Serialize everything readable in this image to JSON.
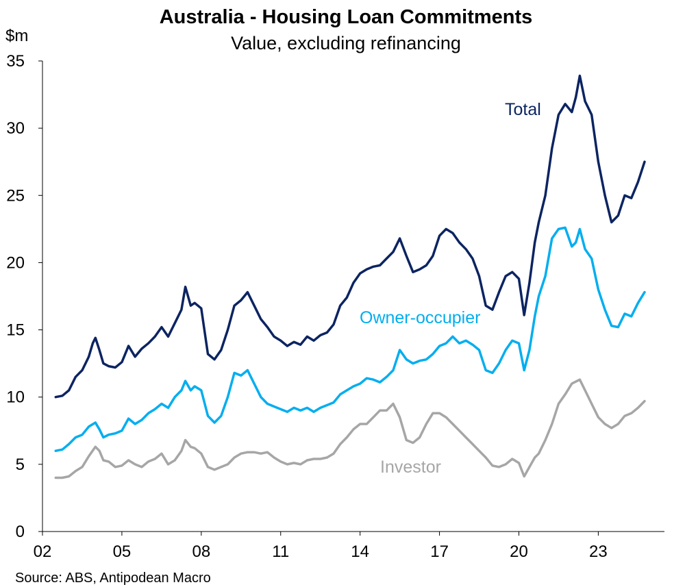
{
  "chart_data": {
    "type": "line",
    "title": "Australia - Housing Loan Commitments",
    "subtitle": "Value, excluding refinancing",
    "ylabel": "$m",
    "ylim": [
      0,
      35
    ],
    "yticks": [
      "0",
      "5",
      "10",
      "15",
      "20",
      "25",
      "30",
      "35"
    ],
    "xlim": [
      2002,
      2025.5
    ],
    "xtick_values": [
      2002,
      2005,
      2008,
      2011,
      2014,
      2017,
      2020,
      2023
    ],
    "xticks": [
      "02",
      "05",
      "08",
      "11",
      "14",
      "17",
      "20",
      "23"
    ],
    "grid": false,
    "source": "Source: ABS, Antipodean Macro",
    "series": [
      {
        "name": "Total",
        "color": "#0c2461",
        "points": [
          [
            2002.5,
            10.0
          ],
          [
            2002.75,
            10.1
          ],
          [
            2003.0,
            10.5
          ],
          [
            2003.25,
            11.5
          ],
          [
            2003.5,
            12.0
          ],
          [
            2003.75,
            13.0
          ],
          [
            2003.9,
            14.0
          ],
          [
            2004.0,
            14.4
          ],
          [
            2004.15,
            13.5
          ],
          [
            2004.3,
            12.5
          ],
          [
            2004.5,
            12.3
          ],
          [
            2004.75,
            12.2
          ],
          [
            2005.0,
            12.6
          ],
          [
            2005.25,
            13.8
          ],
          [
            2005.5,
            13.0
          ],
          [
            2005.75,
            13.6
          ],
          [
            2006.0,
            14.0
          ],
          [
            2006.25,
            14.5
          ],
          [
            2006.5,
            15.2
          ],
          [
            2006.75,
            14.5
          ],
          [
            2007.0,
            15.5
          ],
          [
            2007.25,
            16.5
          ],
          [
            2007.4,
            18.2
          ],
          [
            2007.6,
            16.8
          ],
          [
            2007.75,
            17.0
          ],
          [
            2008.0,
            16.6
          ],
          [
            2008.25,
            13.2
          ],
          [
            2008.5,
            12.8
          ],
          [
            2008.75,
            13.5
          ],
          [
            2009.0,
            15.0
          ],
          [
            2009.25,
            16.8
          ],
          [
            2009.5,
            17.2
          ],
          [
            2009.75,
            17.8
          ],
          [
            2010.0,
            16.8
          ],
          [
            2010.25,
            15.8
          ],
          [
            2010.5,
            15.2
          ],
          [
            2010.75,
            14.5
          ],
          [
            2011.0,
            14.2
          ],
          [
            2011.25,
            13.8
          ],
          [
            2011.5,
            14.1
          ],
          [
            2011.75,
            13.9
          ],
          [
            2012.0,
            14.5
          ],
          [
            2012.25,
            14.2
          ],
          [
            2012.5,
            14.6
          ],
          [
            2012.75,
            14.8
          ],
          [
            2013.0,
            15.4
          ],
          [
            2013.25,
            16.8
          ],
          [
            2013.5,
            17.4
          ],
          [
            2013.75,
            18.5
          ],
          [
            2014.0,
            19.2
          ],
          [
            2014.25,
            19.5
          ],
          [
            2014.5,
            19.7
          ],
          [
            2014.75,
            19.8
          ],
          [
            2015.0,
            20.3
          ],
          [
            2015.25,
            20.8
          ],
          [
            2015.5,
            21.8
          ],
          [
            2015.75,
            20.5
          ],
          [
            2016.0,
            19.3
          ],
          [
            2016.25,
            19.5
          ],
          [
            2016.5,
            19.8
          ],
          [
            2016.75,
            20.5
          ],
          [
            2017.0,
            22.0
          ],
          [
            2017.25,
            22.5
          ],
          [
            2017.5,
            22.2
          ],
          [
            2017.75,
            21.5
          ],
          [
            2018.0,
            21.0
          ],
          [
            2018.25,
            20.3
          ],
          [
            2018.5,
            19.0
          ],
          [
            2018.75,
            16.8
          ],
          [
            2019.0,
            16.5
          ],
          [
            2019.25,
            17.8
          ],
          [
            2019.5,
            19.0
          ],
          [
            2019.75,
            19.3
          ],
          [
            2020.0,
            18.8
          ],
          [
            2020.2,
            16.1
          ],
          [
            2020.4,
            18.5
          ],
          [
            2020.6,
            21.5
          ],
          [
            2020.75,
            23.0
          ],
          [
            2021.0,
            25.0
          ],
          [
            2021.25,
            28.5
          ],
          [
            2021.5,
            31.0
          ],
          [
            2021.75,
            31.8
          ],
          [
            2022.0,
            31.2
          ],
          [
            2022.15,
            32.3
          ],
          [
            2022.3,
            33.9
          ],
          [
            2022.5,
            32.0
          ],
          [
            2022.75,
            31.0
          ],
          [
            2023.0,
            27.5
          ],
          [
            2023.25,
            25.0
          ],
          [
            2023.5,
            23.0
          ],
          [
            2023.75,
            23.5
          ],
          [
            2024.0,
            25.0
          ],
          [
            2024.25,
            24.8
          ],
          [
            2024.5,
            26.0
          ],
          [
            2024.75,
            27.5
          ]
        ]
      },
      {
        "name": "Owner-occupier",
        "color": "#00aeef",
        "points": [
          [
            2002.5,
            6.0
          ],
          [
            2002.75,
            6.1
          ],
          [
            2003.0,
            6.5
          ],
          [
            2003.25,
            7.0
          ],
          [
            2003.5,
            7.2
          ],
          [
            2003.75,
            7.8
          ],
          [
            2004.0,
            8.1
          ],
          [
            2004.15,
            7.6
          ],
          [
            2004.3,
            7.0
          ],
          [
            2004.5,
            7.2
          ],
          [
            2004.75,
            7.3
          ],
          [
            2005.0,
            7.5
          ],
          [
            2005.25,
            8.4
          ],
          [
            2005.5,
            8.0
          ],
          [
            2005.75,
            8.3
          ],
          [
            2006.0,
            8.8
          ],
          [
            2006.25,
            9.1
          ],
          [
            2006.5,
            9.5
          ],
          [
            2006.75,
            9.2
          ],
          [
            2007.0,
            10.0
          ],
          [
            2007.25,
            10.5
          ],
          [
            2007.4,
            11.2
          ],
          [
            2007.6,
            10.5
          ],
          [
            2007.75,
            10.8
          ],
          [
            2008.0,
            10.5
          ],
          [
            2008.25,
            8.6
          ],
          [
            2008.5,
            8.1
          ],
          [
            2008.75,
            8.6
          ],
          [
            2009.0,
            10.0
          ],
          [
            2009.25,
            11.8
          ],
          [
            2009.5,
            11.6
          ],
          [
            2009.75,
            12.0
          ],
          [
            2010.0,
            11.0
          ],
          [
            2010.25,
            10.0
          ],
          [
            2010.5,
            9.5
          ],
          [
            2010.75,
            9.3
          ],
          [
            2011.0,
            9.1
          ],
          [
            2011.25,
            8.9
          ],
          [
            2011.5,
            9.2
          ],
          [
            2011.75,
            9.0
          ],
          [
            2012.0,
            9.2
          ],
          [
            2012.25,
            8.9
          ],
          [
            2012.5,
            9.2
          ],
          [
            2012.75,
            9.4
          ],
          [
            2013.0,
            9.6
          ],
          [
            2013.25,
            10.2
          ],
          [
            2013.5,
            10.5
          ],
          [
            2013.75,
            10.8
          ],
          [
            2014.0,
            11.0
          ],
          [
            2014.25,
            11.4
          ],
          [
            2014.5,
            11.3
          ],
          [
            2014.75,
            11.1
          ],
          [
            2015.0,
            11.5
          ],
          [
            2015.25,
            12.0
          ],
          [
            2015.5,
            13.5
          ],
          [
            2015.75,
            12.8
          ],
          [
            2016.0,
            12.5
          ],
          [
            2016.25,
            12.7
          ],
          [
            2016.5,
            12.8
          ],
          [
            2016.75,
            13.2
          ],
          [
            2017.0,
            13.8
          ],
          [
            2017.25,
            14.0
          ],
          [
            2017.5,
            14.5
          ],
          [
            2017.75,
            14.0
          ],
          [
            2018.0,
            14.2
          ],
          [
            2018.25,
            13.9
          ],
          [
            2018.5,
            13.5
          ],
          [
            2018.75,
            12.0
          ],
          [
            2019.0,
            11.8
          ],
          [
            2019.25,
            12.5
          ],
          [
            2019.5,
            13.5
          ],
          [
            2019.75,
            14.2
          ],
          [
            2020.0,
            14.0
          ],
          [
            2020.2,
            12.0
          ],
          [
            2020.4,
            13.5
          ],
          [
            2020.6,
            16.0
          ],
          [
            2020.75,
            17.5
          ],
          [
            2021.0,
            19.0
          ],
          [
            2021.25,
            21.8
          ],
          [
            2021.5,
            22.5
          ],
          [
            2021.75,
            22.6
          ],
          [
            2022.0,
            21.2
          ],
          [
            2022.15,
            21.5
          ],
          [
            2022.3,
            22.5
          ],
          [
            2022.5,
            21.0
          ],
          [
            2022.75,
            20.3
          ],
          [
            2023.0,
            18.0
          ],
          [
            2023.25,
            16.5
          ],
          [
            2023.5,
            15.3
          ],
          [
            2023.75,
            15.2
          ],
          [
            2024.0,
            16.2
          ],
          [
            2024.25,
            16.0
          ],
          [
            2024.5,
            17.0
          ],
          [
            2024.75,
            17.8
          ]
        ]
      },
      {
        "name": "Investor",
        "color": "#a6a6a6",
        "points": [
          [
            2002.5,
            4.0
          ],
          [
            2002.75,
            4.0
          ],
          [
            2003.0,
            4.1
          ],
          [
            2003.25,
            4.5
          ],
          [
            2003.5,
            4.8
          ],
          [
            2003.75,
            5.6
          ],
          [
            2004.0,
            6.3
          ],
          [
            2004.15,
            6.0
          ],
          [
            2004.3,
            5.3
          ],
          [
            2004.5,
            5.2
          ],
          [
            2004.75,
            4.8
          ],
          [
            2005.0,
            4.9
          ],
          [
            2005.25,
            5.3
          ],
          [
            2005.5,
            5.0
          ],
          [
            2005.75,
            4.8
          ],
          [
            2006.0,
            5.2
          ],
          [
            2006.25,
            5.4
          ],
          [
            2006.5,
            5.8
          ],
          [
            2006.75,
            5.0
          ],
          [
            2007.0,
            5.3
          ],
          [
            2007.25,
            6.0
          ],
          [
            2007.4,
            6.8
          ],
          [
            2007.6,
            6.3
          ],
          [
            2007.75,
            6.2
          ],
          [
            2008.0,
            5.8
          ],
          [
            2008.25,
            4.8
          ],
          [
            2008.5,
            4.6
          ],
          [
            2008.75,
            4.8
          ],
          [
            2009.0,
            5.0
          ],
          [
            2009.25,
            5.5
          ],
          [
            2009.5,
            5.8
          ],
          [
            2009.75,
            5.9
          ],
          [
            2010.0,
            5.9
          ],
          [
            2010.25,
            5.8
          ],
          [
            2010.5,
            5.9
          ],
          [
            2010.75,
            5.5
          ],
          [
            2011.0,
            5.2
          ],
          [
            2011.25,
            5.0
          ],
          [
            2011.5,
            5.1
          ],
          [
            2011.75,
            5.0
          ],
          [
            2012.0,
            5.3
          ],
          [
            2012.25,
            5.4
          ],
          [
            2012.5,
            5.4
          ],
          [
            2012.75,
            5.5
          ],
          [
            2013.0,
            5.8
          ],
          [
            2013.25,
            6.5
          ],
          [
            2013.5,
            7.0
          ],
          [
            2013.75,
            7.6
          ],
          [
            2014.0,
            8.0
          ],
          [
            2014.25,
            8.0
          ],
          [
            2014.5,
            8.5
          ],
          [
            2014.75,
            9.0
          ],
          [
            2015.0,
            9.0
          ],
          [
            2015.25,
            9.5
          ],
          [
            2015.5,
            8.5
          ],
          [
            2015.75,
            6.8
          ],
          [
            2016.0,
            6.6
          ],
          [
            2016.25,
            7.0
          ],
          [
            2016.5,
            8.0
          ],
          [
            2016.75,
            8.8
          ],
          [
            2017.0,
            8.8
          ],
          [
            2017.25,
            8.5
          ],
          [
            2017.5,
            8.0
          ],
          [
            2017.75,
            7.5
          ],
          [
            2018.0,
            7.0
          ],
          [
            2018.25,
            6.5
          ],
          [
            2018.5,
            6.0
          ],
          [
            2018.75,
            5.5
          ],
          [
            2019.0,
            4.9
          ],
          [
            2019.25,
            4.8
          ],
          [
            2019.5,
            5.0
          ],
          [
            2019.75,
            5.4
          ],
          [
            2020.0,
            5.1
          ],
          [
            2020.2,
            4.1
          ],
          [
            2020.4,
            4.8
          ],
          [
            2020.6,
            5.5
          ],
          [
            2020.75,
            5.8
          ],
          [
            2021.0,
            6.8
          ],
          [
            2021.25,
            8.0
          ],
          [
            2021.5,
            9.5
          ],
          [
            2021.75,
            10.2
          ],
          [
            2022.0,
            11.0
          ],
          [
            2022.3,
            11.3
          ],
          [
            2022.5,
            10.5
          ],
          [
            2022.75,
            9.5
          ],
          [
            2023.0,
            8.5
          ],
          [
            2023.25,
            8.0
          ],
          [
            2023.5,
            7.7
          ],
          [
            2023.75,
            8.0
          ],
          [
            2024.0,
            8.6
          ],
          [
            2024.25,
            8.8
          ],
          [
            2024.5,
            9.2
          ],
          [
            2024.75,
            9.7
          ]
        ]
      }
    ]
  }
}
